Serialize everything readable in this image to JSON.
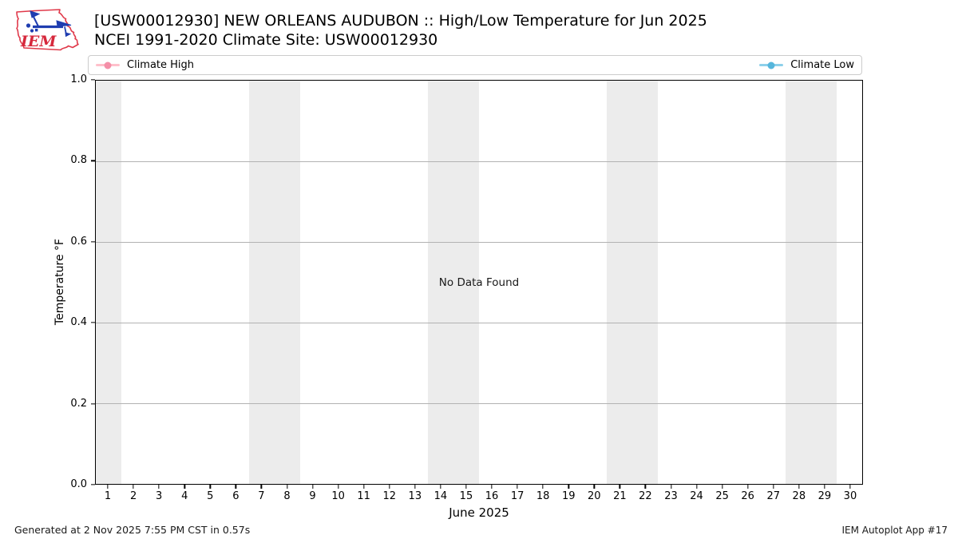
{
  "logo": {
    "text": "IEM"
  },
  "chart_data": {
    "type": "line",
    "title": "[USW00012930] NEW ORLEANS AUDUBON :: High/Low Temperature for Jun 2025",
    "subtitle": "NCEI 1991-2020 Climate Site: USW00012930",
    "xlabel": "June 2025",
    "ylabel": "Temperature °F",
    "xlim": [
      0.5,
      30.5
    ],
    "ylim": [
      0.0,
      1.0
    ],
    "x_ticks": [
      1,
      2,
      3,
      4,
      5,
      6,
      7,
      8,
      9,
      10,
      11,
      12,
      13,
      14,
      15,
      16,
      17,
      18,
      19,
      20,
      21,
      22,
      23,
      24,
      25,
      26,
      27,
      28,
      29,
      30
    ],
    "y_ticks": [
      0.0,
      0.2,
      0.4,
      0.6,
      0.8,
      1.0
    ],
    "y_tick_labels": [
      "0.0",
      "0.2",
      "0.4",
      "0.6",
      "0.8",
      "1.0"
    ],
    "grid": true,
    "legend_position": "top",
    "weekend_bands": [
      [
        0.5,
        1.5
      ],
      [
        6.5,
        8.5
      ],
      [
        13.5,
        15.5
      ],
      [
        20.5,
        22.5
      ],
      [
        27.5,
        29.5
      ]
    ],
    "series": [
      {
        "name": "Climate High",
        "x": [],
        "values": []
      },
      {
        "name": "Climate Low",
        "x": [],
        "values": []
      }
    ],
    "annotations": [
      "No Data Found"
    ]
  },
  "legend": {
    "entries": [
      {
        "label": "Climate High",
        "line_color": "#ffc0cb",
        "marker_color": "#f48fa8"
      },
      {
        "label": "Climate Low",
        "line_color": "#8dd0ea",
        "marker_color": "#56b6dc"
      }
    ]
  },
  "plot": {
    "no_data_text": "No Data Found"
  },
  "footer": {
    "left": "Generated at 2 Nov 2025 7:55 PM CST in 0.57s",
    "right": "IEM Autoplot App #17"
  },
  "styles": {
    "weekend_band_color": "#ececec",
    "grid_color": "#b2b2b2",
    "axis_color": "#000000",
    "logo_red": "#e0394a",
    "logo_blue": "#1f3db0"
  }
}
